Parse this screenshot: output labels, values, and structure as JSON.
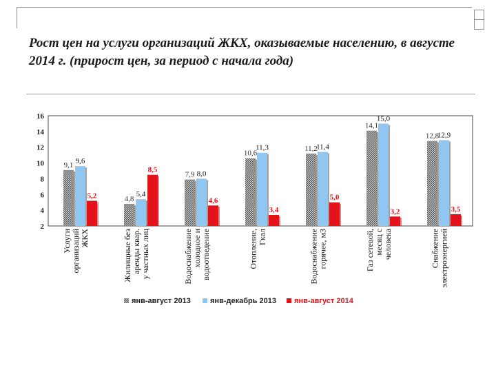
{
  "slide": {
    "title": "Рост цен на услуги организаций ЖКХ, оказываемые населению, в августе 2014 г. (прирост цен, за период с начала года)"
  },
  "chart_data": {
    "type": "bar",
    "categories": [
      "Услуги организаций ЖКХ",
      "Жилищные без аренды квар. у частных лиц",
      "Водоснабжение холодное и водоотведение",
      "Отопление, Гкал",
      "Водоснабжение горячее, м3",
      "Газ сетевой, месяц с человека",
      "Снабжение электроэнергией"
    ],
    "series": [
      {
        "name": "янв-август 2013",
        "values": [
          9.1,
          4.8,
          7.9,
          10.6,
          11.2,
          14.1,
          12.8
        ],
        "labels": [
          "9,1",
          "4,8",
          "7,9",
          "10,6",
          "11,2",
          "14,1",
          "12,8"
        ],
        "color": "#9a9a9a"
      },
      {
        "name": "янв-декабрь 2013",
        "values": [
          9.6,
          5.4,
          8.0,
          11.3,
          11.4,
          15.0,
          12.9
        ],
        "labels": [
          "9,6",
          "5,4",
          "8,0",
          "11,3",
          "11,4",
          "15,0",
          "12,9"
        ],
        "color": "#8fc6f2"
      },
      {
        "name": "янв-август 2014",
        "values": [
          5.2,
          8.5,
          4.6,
          3.4,
          5.0,
          3.2,
          3.5
        ],
        "labels": [
          "5,2",
          "8,5",
          "4,6",
          "3,4",
          "5,0",
          "3,2",
          "3,5"
        ],
        "color": "#e3121b"
      }
    ],
    "ylim": [
      2,
      16
    ],
    "yticks": [
      "2",
      "4",
      "6",
      "8",
      "10",
      "12",
      "14",
      "16"
    ],
    "grid": false,
    "legend": "bottom"
  }
}
